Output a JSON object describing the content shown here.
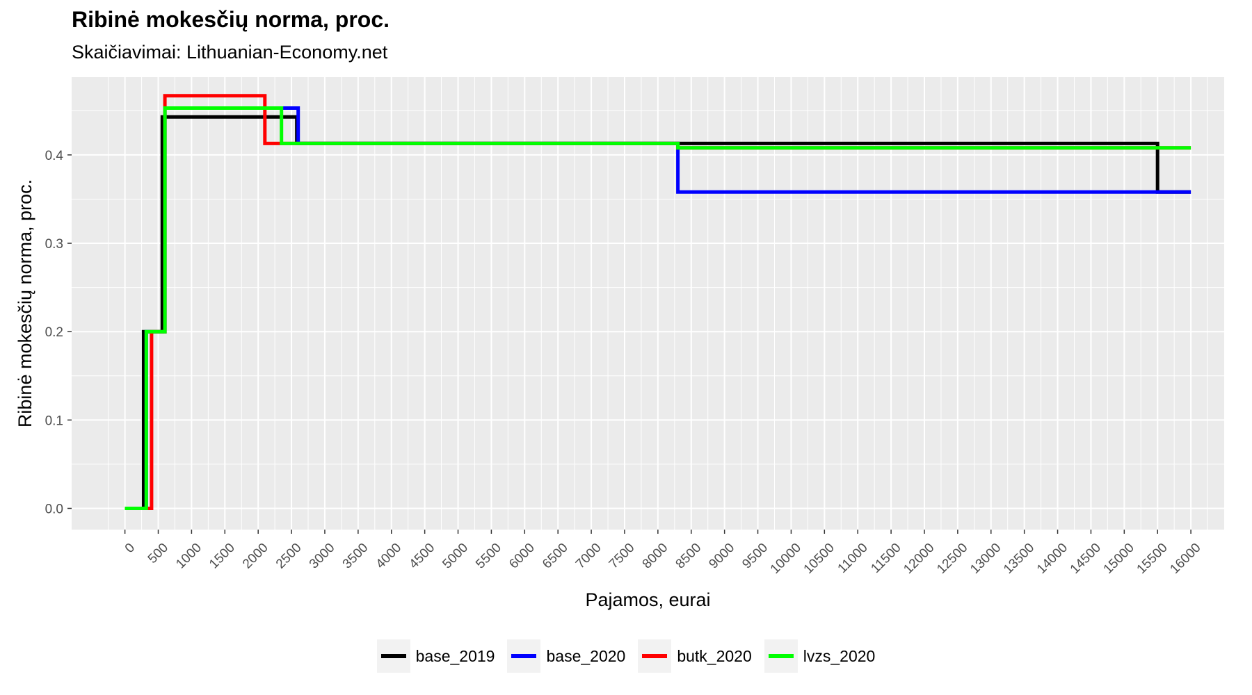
{
  "chart_data": {
    "type": "line",
    "title": "Ribinė mokesčių norma, proc.",
    "subtitle": "Skaičiavimai: Lithuanian-Economy.net",
    "xlabel": "Pajamos, eurai",
    "ylabel": "Ribinė mokesčių norma, proc.",
    "xlim": [
      -800,
      16500
    ],
    "ylim": [
      -0.024,
      0.488
    ],
    "x_ticks": [
      "0",
      "500",
      "1000",
      "1500",
      "2000",
      "2500",
      "3000",
      "3500",
      "4000",
      "4500",
      "5000",
      "5500",
      "6000",
      "6500",
      "7000",
      "7500",
      "8000",
      "8500",
      "9000",
      "9500",
      "10000",
      "10500",
      "11000",
      "11500",
      "12000",
      "12500",
      "13000",
      "13500",
      "14000",
      "14500",
      "15000",
      "15500",
      "16000"
    ],
    "y_ticks": [
      "0.0",
      "0.1",
      "0.2",
      "0.3",
      "0.4"
    ],
    "legend_position": "bottom",
    "grid": true,
    "series": [
      {
        "name": "base_2019",
        "color": "#000000",
        "x": [
          0,
          280,
          280,
          560,
          560,
          2580,
          2580,
          15500,
          15500,
          16000
        ],
        "y": [
          0,
          0,
          0.2,
          0.2,
          0.443,
          0.443,
          0.413,
          0.413,
          0.358,
          0.358
        ]
      },
      {
        "name": "base_2020",
        "color": "#0000ff",
        "x": [
          0,
          320,
          320,
          600,
          600,
          2600,
          2600,
          8300,
          8300,
          16000
        ],
        "y": [
          0,
          0,
          0.2,
          0.2,
          0.453,
          0.453,
          0.413,
          0.413,
          0.358,
          0.358
        ]
      },
      {
        "name": "butk_2020",
        "color": "#ff0000",
        "x": [
          0,
          400,
          400,
          600,
          600,
          2100,
          2100,
          8300,
          8300,
          16000
        ],
        "y": [
          0,
          0,
          0.2,
          0.2,
          0.467,
          0.467,
          0.413,
          0.413,
          0.408,
          0.408
        ]
      },
      {
        "name": "lvzs_2020",
        "color": "#00ff00",
        "x": [
          0,
          320,
          320,
          600,
          600,
          2350,
          2350,
          8300,
          8300,
          16000
        ],
        "y": [
          0,
          0,
          0.2,
          0.2,
          0.453,
          0.453,
          0.413,
          0.413,
          0.408,
          0.408
        ]
      }
    ]
  }
}
